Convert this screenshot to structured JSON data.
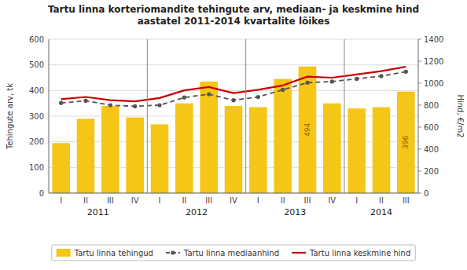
{
  "chart_data": {
    "type": "bar",
    "title": "Tartu linna korteriomandite tehingute arv, mediaan- ja keskmine hind\naastatel 2011-2014 kvartalite lõikes",
    "categories": [
      "I",
      "II",
      "III",
      "IV",
      "I",
      "II",
      "III",
      "IV",
      "I",
      "II",
      "III",
      "IV",
      "I",
      "II",
      "III"
    ],
    "category_groups": [
      {
        "label": "2011",
        "count": 4
      },
      {
        "label": "2012",
        "count": 4
      },
      {
        "label": "2013",
        "count": 4
      },
      {
        "label": "2014",
        "count": 3
      }
    ],
    "series": [
      {
        "name": "Tartu linna tehingud",
        "type": "bar",
        "color": "#F5C518",
        "values": [
          195,
          290,
          340,
          295,
          268,
          350,
          435,
          340,
          335,
          445,
          494,
          350,
          330,
          335,
          396
        ],
        "value_labels": [
          null,
          null,
          null,
          null,
          null,
          null,
          null,
          null,
          null,
          null,
          "494",
          null,
          null,
          null,
          "396"
        ]
      },
      {
        "name": "Tartu linna mediaanhind",
        "type": "line",
        "color": "#555555",
        "line_style": "dashed",
        "marker": "circle",
        "axis": "y2",
        "values": [
          820,
          840,
          800,
          790,
          800,
          870,
          900,
          845,
          875,
          940,
          1005,
          1015,
          1040,
          1065,
          1105
        ]
      },
      {
        "name": "Tartu linna keskmine hind",
        "type": "line",
        "color": "#CC0000",
        "line_style": "solid",
        "axis": "y2",
        "values": [
          855,
          875,
          845,
          835,
          865,
          935,
          965,
          910,
          940,
          980,
          1060,
          1050,
          1080,
          1110,
          1150
        ]
      }
    ],
    "ylabel": "Tehingute arv, tk",
    "y2label": "Hind, €/m2",
    "ylim": [
      0,
      600
    ],
    "yticks": [
      0,
      100,
      200,
      300,
      400,
      500,
      600
    ],
    "y2lim": [
      0,
      1400
    ],
    "y2ticks": [
      0,
      200,
      400,
      600,
      800,
      1000,
      1200,
      1400
    ],
    "grid": true,
    "legend": "bottom"
  }
}
